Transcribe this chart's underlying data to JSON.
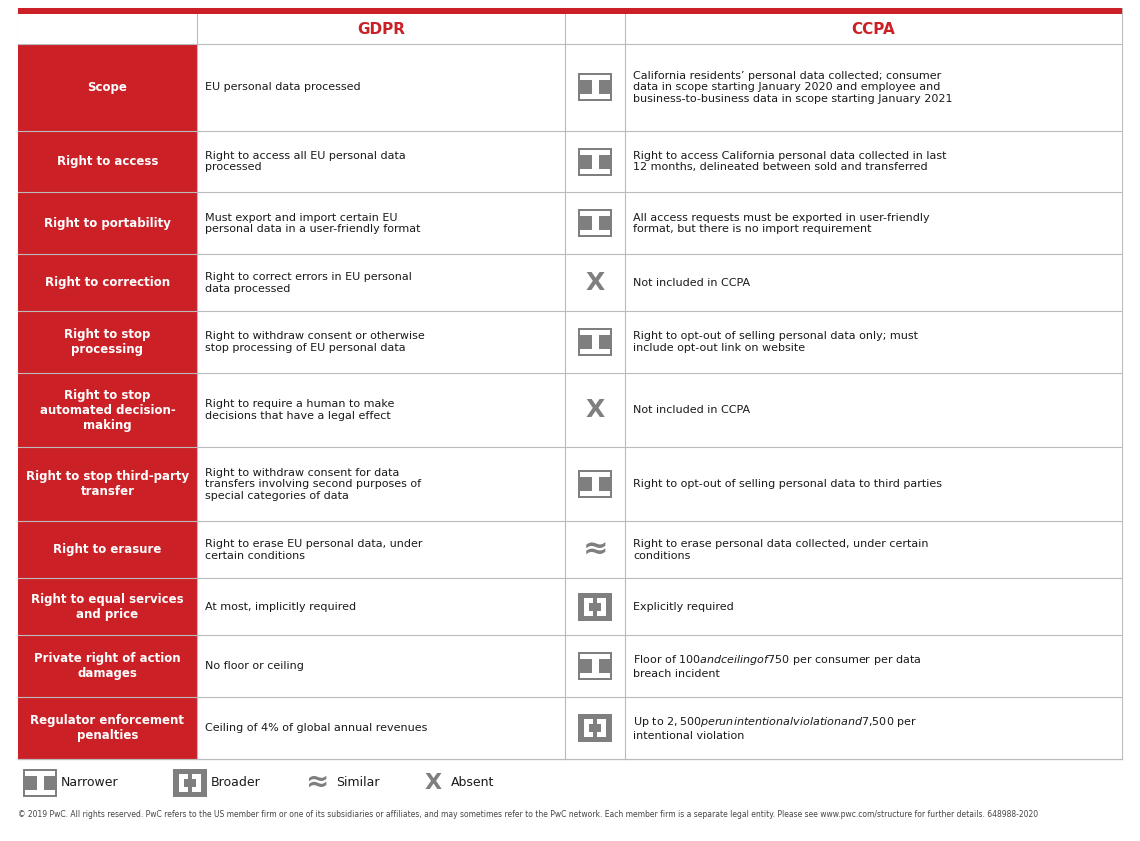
{
  "title_gdpr": "GDPR",
  "title_ccpa": "CCPA",
  "red_color": "#CC2027",
  "gray_color": "#7F7F7F",
  "white": "#FFFFFF",
  "black": "#1A1A1A",
  "border_color": "#BBBBBB",
  "fig_w": 11.4,
  "fig_h": 8.41,
  "dpi": 100,
  "rows": [
    {
      "label": "Scope",
      "gdpr_text": "EU personal data processed",
      "icon": "narrower",
      "ccpa_text": "California residents’ personal data collected; consumer\ndata in scope starting January 2020 and employee and\nbusiness-to-business data in scope starting January 2021"
    },
    {
      "label": "Right to access",
      "gdpr_text": "Right to access all EU personal data\nprocessed",
      "icon": "narrower",
      "ccpa_text": "Right to access California personal data collected in last\n12 months, delineated between sold and transferred"
    },
    {
      "label": "Right to portability",
      "gdpr_text": "Must export and import certain EU\npersonal data in a user-friendly format",
      "icon": "narrower",
      "ccpa_text": "All access requests must be exported in user-friendly\nformat, but there is no import requirement"
    },
    {
      "label": "Right to correction",
      "gdpr_text": "Right to correct errors in EU personal\ndata processed",
      "icon": "absent",
      "ccpa_text": "Not included in CCPA"
    },
    {
      "label": "Right to stop\nprocessing",
      "gdpr_text": "Right to withdraw consent or otherwise\nstop processing of EU personal data",
      "icon": "narrower",
      "ccpa_text": "Right to opt-out of selling personal data only; must\ninclude opt-out link on website"
    },
    {
      "label": "Right to stop\nautomated decision-\nmaking",
      "gdpr_text": "Right to require a human to make\ndecisions that have a legal effect",
      "icon": "absent",
      "ccpa_text": "Not included in CCPA"
    },
    {
      "label": "Right to stop third-party\ntransfer",
      "gdpr_text": "Right to withdraw consent for data\ntransfers involving second purposes of\nspecial categories of data",
      "icon": "narrower",
      "ccpa_text": "Right to opt-out of selling personal data to third parties"
    },
    {
      "label": "Right to erasure",
      "gdpr_text": "Right to erase EU personal data, under\ncertain conditions",
      "icon": "similar",
      "ccpa_text": "Right to erase personal data collected, under certain\nconditions"
    },
    {
      "label": "Right to equal services\nand price",
      "gdpr_text": "At most, implicitly required",
      "icon": "broader",
      "ccpa_text": "Explicitly required"
    },
    {
      "label": "Private right of action\ndamages",
      "gdpr_text": "No floor or ceiling",
      "icon": "narrower",
      "ccpa_text": "Floor of $100 and ceiling of $750 per consumer per data\nbreach incident"
    },
    {
      "label": "Regulator enforcement\npenalties",
      "gdpr_text": "Ceiling of 4% of global annual revenues",
      "icon": "broader",
      "ccpa_text": "Up to $2,500 per unintentional violation and $7,500 per\nintentional violation"
    }
  ],
  "footer_text": "© 2019 PwC. All rights reserved. PwC refers to the US member firm or one of its subsidiaries or affiliates, and may sometimes refer to the PwC network. Each member firm is a separate legal entity. Please see www.pwc.com/structure for further details. 648988-2020"
}
